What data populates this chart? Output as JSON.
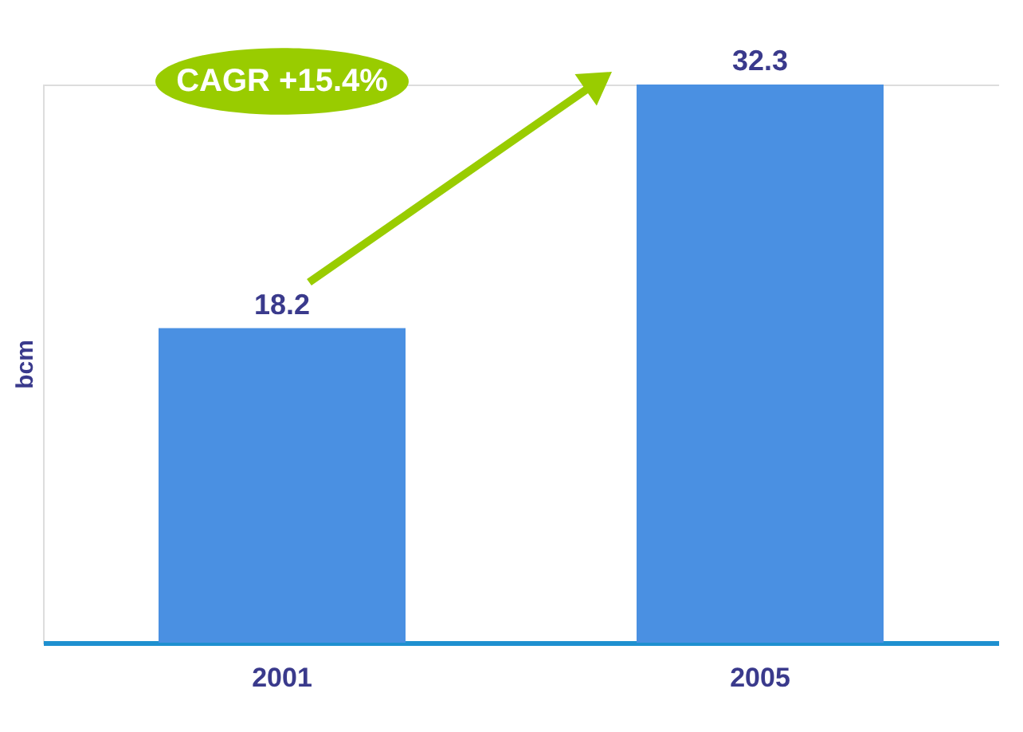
{
  "chart_data": {
    "type": "bar",
    "categories": [
      "2001",
      "2005"
    ],
    "values": [
      18.2,
      32.3
    ],
    "color": "#4a90e2",
    "data_labels": true,
    "ylabel": "bcm",
    "annotations": [
      "CAGR +15.4%"
    ],
    "grid": false
  }
}
